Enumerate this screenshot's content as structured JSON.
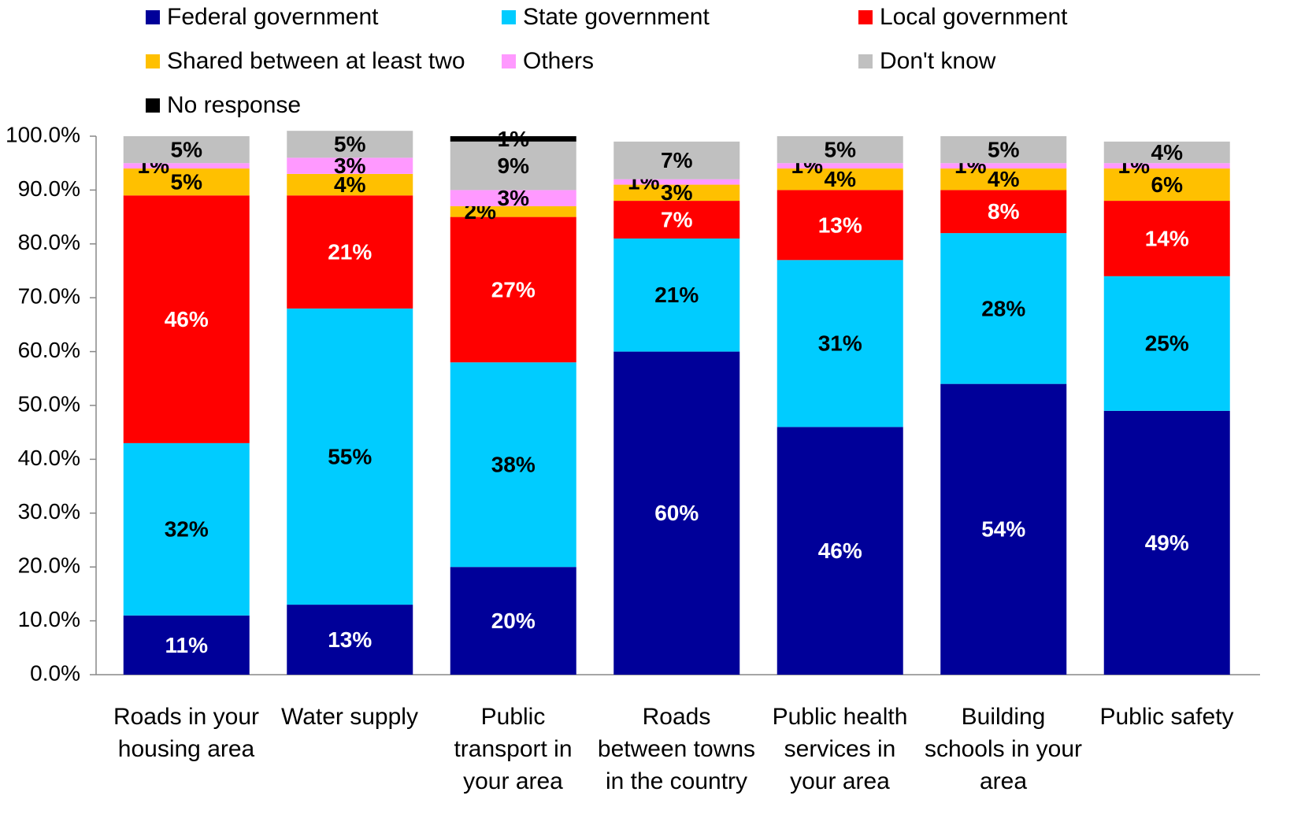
{
  "chart_data": {
    "type": "stacked_bar",
    "categories": [
      "Roads in your housing area",
      "Water supply",
      "Public transport in your area",
      "Roads between towns in the country",
      "Public health services in your area",
      "Building schools in your area",
      "Public safety"
    ],
    "series": [
      {
        "name": "Federal government",
        "color": "#000099",
        "values": [
          11,
          13,
          20,
          60,
          46,
          54,
          49
        ],
        "value_labels": [
          "11%",
          "13%",
          "20%",
          "60%",
          "46%",
          "54%",
          "49%"
        ]
      },
      {
        "name": "State government",
        "color": "#00ccff",
        "values": [
          32,
          55,
          38,
          21,
          31,
          28,
          25
        ],
        "value_labels": [
          "32%",
          "55%",
          "38%",
          "21%",
          "31%",
          "28%",
          "25%"
        ]
      },
      {
        "name": "Local government",
        "color": "#ff0000",
        "values": [
          46,
          21,
          27,
          7,
          13,
          8,
          14
        ],
        "value_labels": [
          "46%",
          "21%",
          "27%",
          "7%",
          "13%",
          "8%",
          "14%"
        ]
      },
      {
        "name": "Shared between at least two",
        "color": "#ffc000",
        "values": [
          5,
          4,
          2,
          3,
          4,
          4,
          6
        ],
        "value_labels": [
          "5%",
          "4%",
          "2%",
          "3%",
          "4%",
          "4%",
          "6%"
        ]
      },
      {
        "name": "Others",
        "color": "#ff99ff",
        "values": [
          1,
          3,
          3,
          1,
          1,
          1,
          1
        ],
        "value_labels": [
          "1%",
          "3%",
          "3%",
          "1%",
          "1%",
          "1%",
          "1%"
        ]
      },
      {
        "name": "Don't know",
        "color": "#c0c0c0",
        "values": [
          5,
          5,
          9,
          7,
          5,
          5,
          4
        ],
        "value_labels": [
          "5%",
          "5%",
          "9%",
          "7%",
          "5%",
          "5%",
          "4%"
        ]
      },
      {
        "name": "No response",
        "color": "#000000",
        "values": [
          null,
          null,
          1,
          null,
          null,
          null,
          null
        ],
        "value_labels": [
          null,
          null,
          "1%",
          null,
          null,
          null,
          null
        ]
      }
    ],
    "ylim": [
      0,
      100
    ],
    "yticks": [
      {
        "value": 0,
        "label": "0.0%"
      },
      {
        "value": 10,
        "label": "10.0%"
      },
      {
        "value": 20,
        "label": "20.0%"
      },
      {
        "value": 30,
        "label": "30.0%"
      },
      {
        "value": 40,
        "label": "40.0%"
      },
      {
        "value": 50,
        "label": "50.0%"
      },
      {
        "value": 60,
        "label": "60.0%"
      },
      {
        "value": 70,
        "label": "70.0%"
      },
      {
        "value": 80,
        "label": "80.0%"
      },
      {
        "value": 90,
        "label": "90.0%"
      },
      {
        "value": 100,
        "label": "100.0%"
      }
    ],
    "legend": "top"
  }
}
